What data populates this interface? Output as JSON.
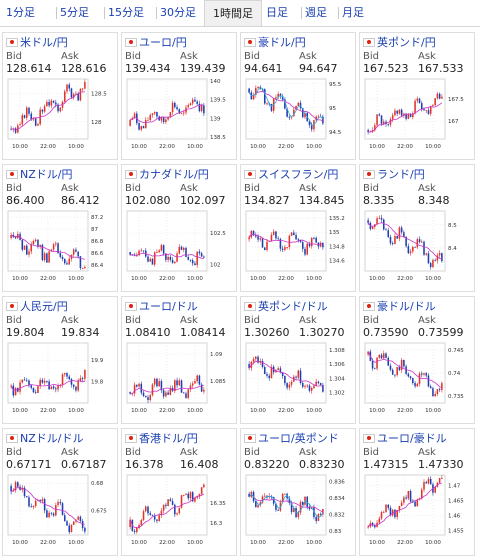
{
  "tabs": [
    {
      "label": "1分足",
      "active": false
    },
    {
      "label": "5分足",
      "active": false
    },
    {
      "label": "15分足",
      "active": false
    },
    {
      "label": "30分足",
      "active": false
    },
    {
      "label": "1時間足",
      "active": true
    },
    {
      "label": "日足",
      "active": false
    },
    {
      "label": "週足",
      "active": false
    },
    {
      "label": "月足",
      "active": false
    }
  ],
  "colors": {
    "up": "#e0342b",
    "down": "#1f3fae",
    "ma": "#cc33cc",
    "ma2": "#33a6d6",
    "link": "#1a3fb0"
  },
  "labels": {
    "bid": "Bid",
    "ask": "Ask"
  },
  "pairs": [
    {
      "name": "米ドル/円",
      "bid": "128.614",
      "ask": "128.616",
      "xticks": [
        "10:00",
        "22:00",
        "10:00"
      ],
      "yticks": [
        "128.5",
        "128"
      ],
      "ylim": [
        127.7,
        128.75
      ],
      "yvals": [
        128.5,
        128.0
      ],
      "start": 127.88,
      "end": 128.63,
      "seed": 3,
      "ma2": false
    },
    {
      "name": "ユーロ/円",
      "bid": "139.434",
      "ask": "139.439",
      "xticks": [
        "10:00",
        "22:00",
        "10:00"
      ],
      "yticks": [
        "140",
        "139.5",
        "139",
        "138.5"
      ],
      "ylim": [
        138.45,
        140.05
      ],
      "yvals": [
        140,
        139.5,
        139,
        138.5
      ],
      "start": 138.8,
      "end": 139.43,
      "seed": 7,
      "ma2": false
    },
    {
      "name": "豪ドル/円",
      "bid": "94.641",
      "ask": "94.647",
      "xticks": [
        "10:00",
        "22:00",
        "10:00"
      ],
      "yticks": [
        "95.5",
        "95",
        "94.5"
      ],
      "ylim": [
        94.35,
        95.6
      ],
      "yvals": [
        95.5,
        95,
        94.5
      ],
      "start": 95.4,
      "end": 94.64,
      "seed": 11,
      "ma2": true
    },
    {
      "name": "英ポンド/円",
      "bid": "167.523",
      "ask": "167.533",
      "xticks": [
        "10:00",
        "22:00",
        "10:00"
      ],
      "yticks": [
        "167.5",
        "167"
      ],
      "ylim": [
        166.6,
        167.95
      ],
      "yvals": [
        167.5,
        167
      ],
      "start": 166.8,
      "end": 167.52,
      "seed": 5,
      "ma2": false
    },
    {
      "name": "NZドル/円",
      "bid": "86.400",
      "ask": "86.412",
      "xticks": [
        "10:00",
        "22:00",
        "10:00"
      ],
      "yticks": [
        "87.2",
        "87",
        "86.8",
        "86.6",
        "86.4"
      ],
      "ylim": [
        86.3,
        87.3
      ],
      "yvals": [
        87.2,
        87,
        86.8,
        86.6,
        86.4
      ],
      "start": 86.85,
      "end": 86.4,
      "seed": 13,
      "ma2": false
    },
    {
      "name": "カナダドル/円",
      "bid": "102.080",
      "ask": "102.097",
      "xticks": [
        "10:00",
        "22:00",
        "10:00"
      ],
      "yticks": [
        "102.5",
        "102"
      ],
      "ylim": [
        101.9,
        102.85
      ],
      "yvals": [
        102.5,
        102
      ],
      "start": 102.2,
      "end": 102.08,
      "seed": 17,
      "ma2": false
    },
    {
      "name": "スイスフラン/円",
      "bid": "134.827",
      "ask": "134.845",
      "xticks": [
        "10:00",
        "22:00",
        "10:00"
      ],
      "yticks": [
        "135.2",
        "135",
        "134.8",
        "134.6"
      ],
      "ylim": [
        134.45,
        135.3
      ],
      "yvals": [
        135.2,
        135,
        134.8,
        134.6
      ],
      "start": 134.9,
      "end": 134.83,
      "seed": 19,
      "ma2": false
    },
    {
      "name": "ランド/円",
      "bid": "8.335",
      "ask": "8.348",
      "xticks": [
        "10:00",
        "22:00",
        "10:00"
      ],
      "yticks": [
        "8.5",
        "8.4"
      ],
      "ylim": [
        8.3,
        8.56
      ],
      "yvals": [
        8.5,
        8.4
      ],
      "start": 8.52,
      "end": 8.335,
      "seed": 23,
      "ma2": false
    },
    {
      "name": "人民元/円",
      "bid": "19.804",
      "ask": "19.834",
      "xticks": [
        "10:00",
        "22:00",
        "10:00"
      ],
      "yticks": [
        "19.9",
        "19.8"
      ],
      "ylim": [
        19.7,
        19.98
      ],
      "yvals": [
        19.9,
        19.8
      ],
      "start": 19.78,
      "end": 19.8,
      "seed": 29,
      "ma2": false
    },
    {
      "name": "ユーロ/ドル",
      "bid": "1.08410",
      "ask": "1.08414",
      "xticks": [
        "10:00",
        "22:00",
        "10:00"
      ],
      "yticks": [
        "1.09",
        "1.085"
      ],
      "ylim": [
        1.081,
        1.092
      ],
      "yvals": [
        1.09,
        1.085
      ],
      "start": 1.083,
      "end": 1.0841,
      "seed": 31,
      "ma2": false
    },
    {
      "name": "英ポンド/ドル",
      "bid": "1.30260",
      "ask": "1.30270",
      "xticks": [
        "10:00",
        "22:00",
        "10:00"
      ],
      "yticks": [
        "1.308",
        "1.306",
        "1.304",
        "1.302"
      ],
      "ylim": [
        1.3005,
        1.309
      ],
      "yvals": [
        1.308,
        1.306,
        1.304,
        1.302
      ],
      "start": 1.306,
      "end": 1.3026,
      "seed": 37,
      "ma2": false
    },
    {
      "name": "豪ドル/ドル",
      "bid": "0.73590",
      "ask": "0.73599",
      "xticks": [
        "10:00",
        "22:00",
        "10:00"
      ],
      "yticks": [
        "0.745",
        "0.74",
        "0.735"
      ],
      "ylim": [
        0.7335,
        0.7465
      ],
      "yvals": [
        0.745,
        0.74,
        0.735
      ],
      "start": 0.744,
      "end": 0.7359,
      "seed": 41,
      "ma2": false
    },
    {
      "name": "NZドル/ドル",
      "bid": "0.67171",
      "ask": "0.67187",
      "xticks": [
        "10:00",
        "22:00",
        "10:00"
      ],
      "yticks": [
        "0.68",
        "0.675"
      ],
      "ylim": [
        0.6705,
        0.6815
      ],
      "yvals": [
        0.68,
        0.675
      ],
      "start": 0.6795,
      "end": 0.6717,
      "seed": 43,
      "ma2": false
    },
    {
      "name": "香港ドル/円",
      "bid": "16.378",
      "ask": "16.408",
      "xticks": [
        "10:00",
        "22:00",
        "10:00"
      ],
      "yticks": [
        "16.35",
        "16.3"
      ],
      "ylim": [
        16.27,
        16.42
      ],
      "yvals": [
        16.35,
        16.3
      ],
      "start": 16.29,
      "end": 16.38,
      "seed": 47,
      "ma2": false
    },
    {
      "name": "ユーロ/英ポンド",
      "bid": "0.83220",
      "ask": "0.83230",
      "xticks": [
        "10:00",
        "22:00",
        "10:00"
      ],
      "yticks": [
        "0.836",
        "0.834",
        "0.832",
        "0.83"
      ],
      "ylim": [
        0.8295,
        0.8368
      ],
      "yvals": [
        0.836,
        0.834,
        0.832,
        0.83
      ],
      "start": 0.8345,
      "end": 0.8322,
      "seed": 53,
      "ma2": true
    },
    {
      "name": "ユーロ/豪ドル",
      "bid": "1.47315",
      "ask": "1.47330",
      "xticks": [
        "10:00",
        "22:00",
        "10:00"
      ],
      "yticks": [
        "1.47",
        "1.465",
        "1.46",
        "1.455"
      ],
      "ylim": [
        1.4535,
        1.4735
      ],
      "yvals": [
        1.47,
        1.465,
        1.46,
        1.455
      ],
      "start": 1.456,
      "end": 1.473,
      "seed": 59,
      "ma2": false
    }
  ]
}
